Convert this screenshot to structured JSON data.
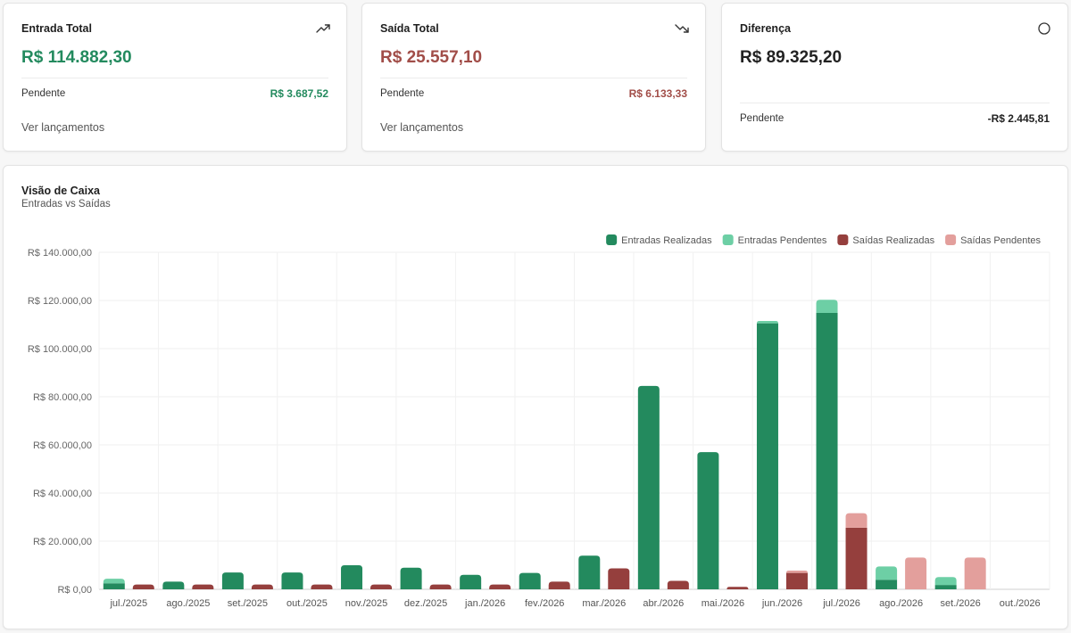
{
  "cards": {
    "entrada": {
      "title": "Entrada Total",
      "value": "R$ 114.882,30",
      "pending_label": "Pendente",
      "pending_value": "R$ 3.687,52",
      "link": "Ver lançamentos",
      "icon": "trending-up-icon"
    },
    "saida": {
      "title": "Saída Total",
      "value": "R$ 25.557,10",
      "pending_label": "Pendente",
      "pending_value": "R$ 6.133,33",
      "link": "Ver lançamentos",
      "icon": "trending-down-icon"
    },
    "diferenca": {
      "title": "Diferença",
      "value": "R$ 89.325,20",
      "pending_label": "Pendente",
      "pending_value": "-R$ 2.445,81",
      "icon": "circle-icon"
    }
  },
  "colors": {
    "entradas_realizadas": "#238a5e",
    "entradas_pendentes": "#6dcfa5",
    "saidas_realizadas": "#953f3d",
    "saidas_pendentes": "#e39f9c"
  },
  "chart_data": {
    "type": "bar",
    "title": "Visão de Caixa",
    "subtitle": "Entradas vs Saídas",
    "legend_position": "top-right",
    "grid": true,
    "ylim": [
      0,
      140000
    ],
    "yticks": [
      "R$ 0,00",
      "R$ 20.000,00",
      "R$ 40.000,00",
      "R$ 60.000,00",
      "R$ 80.000,00",
      "R$ 100.000,00",
      "R$ 120.000,00",
      "R$ 140.000,00"
    ],
    "categories": [
      "jul./2025",
      "ago./2025",
      "set./2025",
      "out./2025",
      "nov./2025",
      "dez./2025",
      "jan./2026",
      "fev./2026",
      "mar./2026",
      "abr./2026",
      "mai./2026",
      "jun./2026",
      "jul./2026",
      "ago./2026",
      "set./2026",
      "out./2026"
    ],
    "series": [
      {
        "name": "Entradas Realizadas",
        "stack": "entradas",
        "values": [
          2500,
          3200,
          7000,
          7000,
          10000,
          9000,
          6000,
          6800,
          14000,
          84500,
          57000,
          110500,
          114800,
          4000,
          1800,
          0
        ]
      },
      {
        "name": "Entradas Pendentes",
        "stack": "entradas",
        "values": [
          1900,
          0,
          0,
          0,
          0,
          0,
          0,
          0,
          0,
          0,
          0,
          1000,
          5500,
          5500,
          3300,
          0
        ]
      },
      {
        "name": "Saídas Realizadas",
        "stack": "saidas",
        "values": [
          2000,
          2000,
          2000,
          2000,
          2000,
          2000,
          2000,
          3200,
          8700,
          3500,
          1000,
          6800,
          25600,
          0,
          0,
          0
        ]
      },
      {
        "name": "Saídas Pendentes",
        "stack": "saidas",
        "values": [
          0,
          0,
          0,
          0,
          0,
          0,
          0,
          0,
          0,
          0,
          0,
          1000,
          6000,
          13200,
          13200,
          0
        ]
      }
    ]
  }
}
